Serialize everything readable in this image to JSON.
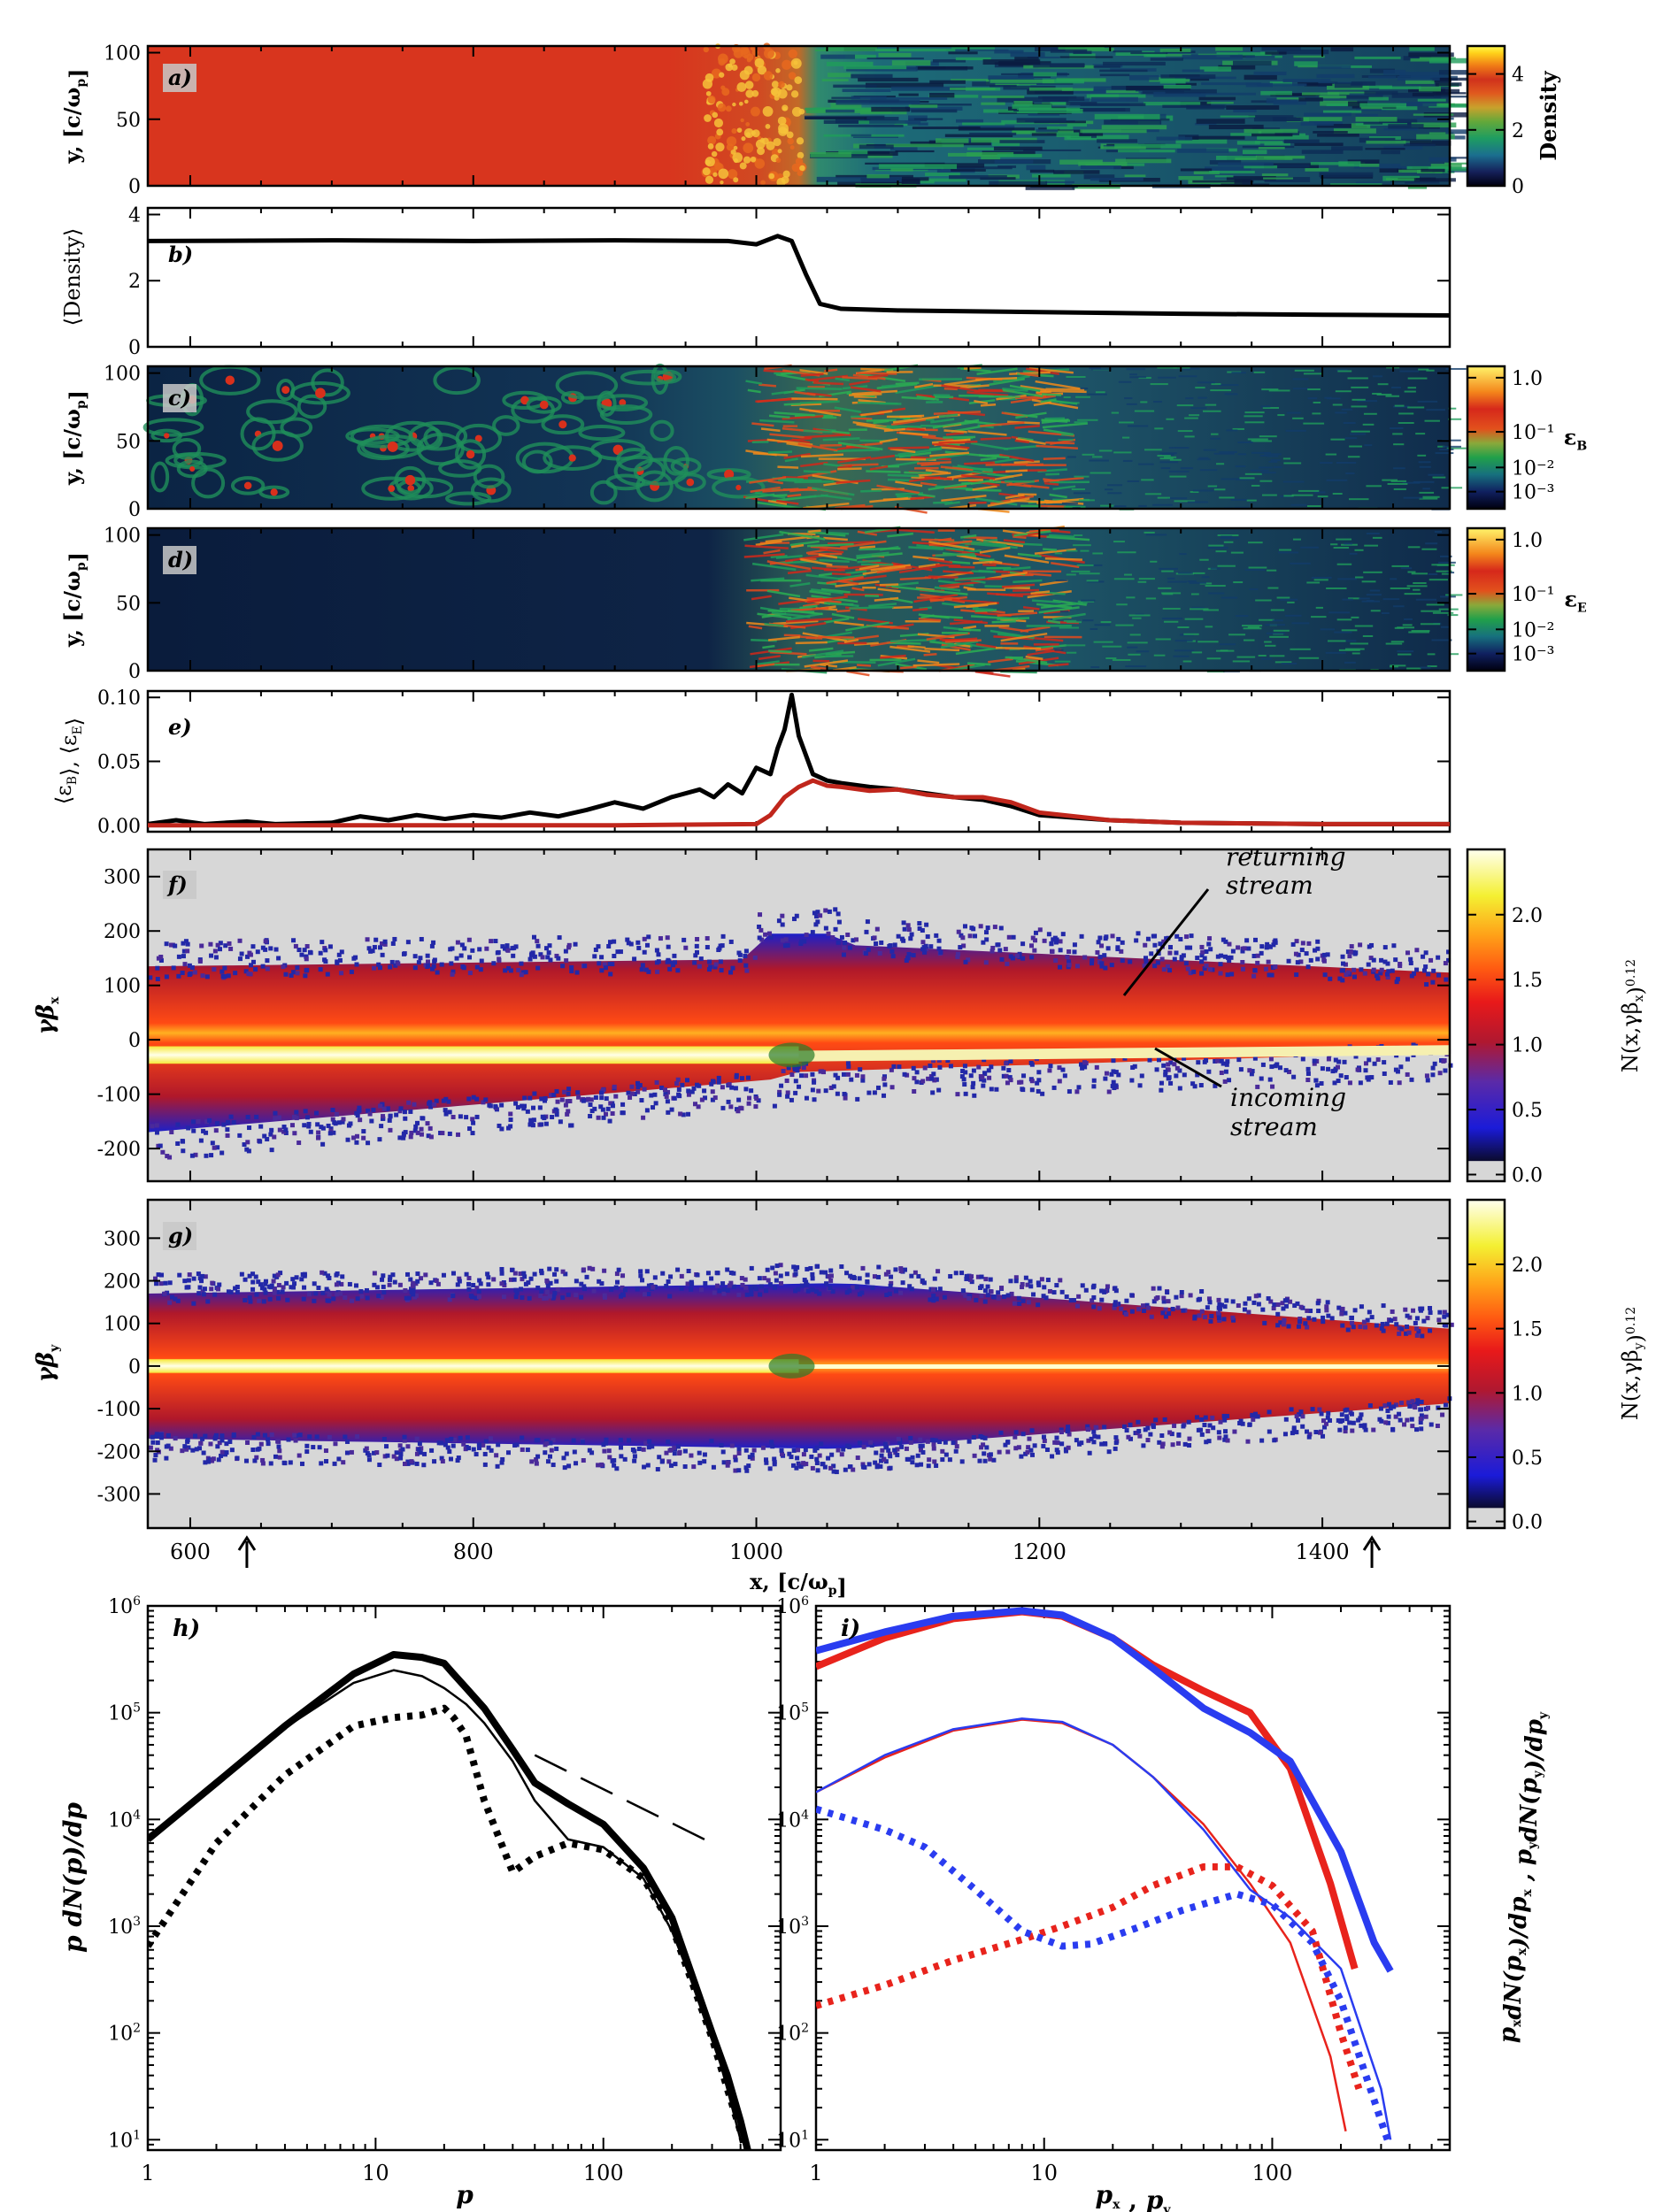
{
  "figure": {
    "colors": {
      "background": "#ffffff",
      "axis": "#000000",
      "red": "#e8231c",
      "blue": "#2a3cf0",
      "upstream_gray": "#d7d7d7",
      "density_red": "#d8351e"
    }
  },
  "chart_data": [
    {
      "id": "a",
      "type": "heatmap",
      "panel_label": "a)",
      "xlim": [
        570,
        1490
      ],
      "ylim": [
        0,
        105
      ],
      "ylabel": "y, [c/ω_p]",
      "yticks": [
        0,
        50,
        100
      ],
      "colorbar": {
        "label": "Density",
        "ticks": [
          0,
          2,
          4
        ],
        "range": [
          0,
          5
        ],
        "colors": [
          "#000010",
          "#15205a",
          "#1b6f8f",
          "#1e9d61",
          "#32b24a",
          "#c9a12c",
          "#e05a1e",
          "#d0321c",
          "#f07c16",
          "#ffd21a",
          "#fffb50"
        ]
      },
      "shock_x": 1020
    },
    {
      "id": "b",
      "type": "line",
      "panel_label": "b)",
      "xlim": [
        570,
        1490
      ],
      "ylim": [
        0,
        4.2
      ],
      "ylabel": "⟨Density⟩",
      "yticks": [
        0,
        2,
        4
      ],
      "series": [
        {
          "name": "mean density",
          "color": "#000000",
          "x": [
            570,
            700,
            800,
            900,
            980,
            1000,
            1015,
            1025,
            1035,
            1045,
            1060,
            1100,
            1200,
            1300,
            1400,
            1490
          ],
          "y": [
            3.2,
            3.22,
            3.2,
            3.22,
            3.2,
            3.1,
            3.35,
            3.2,
            2.2,
            1.3,
            1.15,
            1.1,
            1.05,
            1.0,
            0.97,
            0.95
          ]
        }
      ]
    },
    {
      "id": "c",
      "type": "heatmap",
      "panel_label": "c)",
      "xlim": [
        570,
        1490
      ],
      "ylim": [
        0,
        105
      ],
      "ylabel": "y, [c/ω_p]",
      "yticks": [
        0,
        50,
        100
      ],
      "colorbar": {
        "label": "ε_B",
        "ticklabels": [
          "10⁻³",
          "10⁻²",
          "10⁻¹",
          "1.0"
        ],
        "tickpos": [
          0.12,
          0.29,
          0.54,
          0.92
        ]
      }
    },
    {
      "id": "d",
      "type": "heatmap",
      "panel_label": "d)",
      "xlim": [
        570,
        1490
      ],
      "ylim": [
        0,
        105
      ],
      "ylabel": "y, [c/ω_p]",
      "yticks": [
        0,
        50,
        100
      ],
      "colorbar": {
        "label": "ε_E",
        "ticklabels": [
          "10⁻³",
          "10⁻²",
          "10⁻¹",
          "1.0"
        ],
        "tickpos": [
          0.12,
          0.29,
          0.54,
          0.92
        ]
      }
    },
    {
      "id": "e",
      "type": "line",
      "panel_label": "e)",
      "xlim": [
        570,
        1490
      ],
      "ylim": [
        -0.005,
        0.105
      ],
      "ylabel": "⟨ε_B⟩, ⟨ε_E⟩",
      "yticks": [
        0.0,
        0.05,
        0.1
      ],
      "yticklabels": [
        "0.00",
        "0.05",
        "0.10"
      ],
      "series": [
        {
          "name": "ε_B",
          "color": "#000000",
          "x": [
            570,
            590,
            610,
            640,
            660,
            700,
            720,
            740,
            760,
            780,
            800,
            820,
            840,
            860,
            880,
            900,
            920,
            940,
            960,
            970,
            980,
            990,
            1000,
            1010,
            1015,
            1020,
            1025,
            1030,
            1040,
            1050,
            1060,
            1080,
            1100,
            1120,
            1140,
            1160,
            1180,
            1200,
            1250,
            1300,
            1400,
            1490
          ],
          "y": [
            0.001,
            0.004,
            0.001,
            0.003,
            0.001,
            0.002,
            0.007,
            0.004,
            0.008,
            0.005,
            0.008,
            0.006,
            0.01,
            0.007,
            0.012,
            0.018,
            0.013,
            0.022,
            0.028,
            0.022,
            0.032,
            0.025,
            0.045,
            0.04,
            0.06,
            0.075,
            0.102,
            0.07,
            0.04,
            0.035,
            0.033,
            0.03,
            0.028,
            0.025,
            0.022,
            0.02,
            0.015,
            0.008,
            0.004,
            0.002,
            0.001,
            0.001
          ]
        },
        {
          "name": "ε_E",
          "color": "#c0261c",
          "x": [
            570,
            900,
            1000,
            1010,
            1020,
            1030,
            1040,
            1050,
            1060,
            1080,
            1100,
            1120,
            1140,
            1160,
            1180,
            1200,
            1250,
            1300,
            1400,
            1490
          ],
          "y": [
            0.0,
            0.0,
            0.001,
            0.008,
            0.022,
            0.03,
            0.035,
            0.031,
            0.03,
            0.027,
            0.028,
            0.024,
            0.022,
            0.022,
            0.018,
            0.01,
            0.004,
            0.002,
            0.001,
            0.001
          ]
        }
      ]
    },
    {
      "id": "f",
      "type": "heatmap",
      "panel_label": "f)",
      "xlim": [
        570,
        1490
      ],
      "ylim": [
        -260,
        350
      ],
      "ylabel": "γβ_x",
      "yticks": [
        -200,
        -100,
        0,
        100,
        200,
        300
      ],
      "colorbar": {
        "label": "N(x,γβ_x)^0.12",
        "ticks": [
          0.0,
          0.5,
          1.0,
          1.5,
          2.0
        ],
        "range": [
          0,
          2.4
        ]
      },
      "annotations": [
        "returning",
        "stream",
        "incoming",
        "stream"
      ]
    },
    {
      "id": "g",
      "type": "heatmap",
      "panel_label": "g)",
      "xlim": [
        570,
        1490
      ],
      "ylim": [
        -380,
        390
      ],
      "ylabel": "γβ_y",
      "yticks": [
        -300,
        -200,
        -100,
        0,
        100,
        200,
        300
      ],
      "xlabel": "x, [c/ω_p]",
      "xticks": [
        600,
        800,
        1000,
        1200,
        1400
      ],
      "colorbar": {
        "label": "N(x,γβ_y)^0.12",
        "ticks": [
          0.0,
          0.5,
          1.0,
          1.5,
          2.0
        ],
        "range": [
          0,
          2.4
        ]
      },
      "arrows_x": [
        640,
        1435
      ]
    },
    {
      "id": "h",
      "type": "line",
      "panel_label": "h)",
      "xscale": "log",
      "yscale": "log",
      "xlim": [
        1,
        600
      ],
      "ylim": [
        8,
        1000000
      ],
      "xlabel": "p",
      "ylabel": "p dN(p)/dp",
      "xticks": [
        1,
        10,
        100
      ],
      "yticks": [
        10,
        100,
        1000,
        10000,
        100000,
        1000000
      ],
      "series": [
        {
          "name": "thick",
          "color": "#000000",
          "width": 8,
          "x": [
            1,
            2,
            4,
            8,
            12,
            16,
            20,
            22,
            25,
            30,
            40,
            50,
            70,
            100,
            150,
            200,
            300,
            350,
            400,
            430
          ],
          "y": [
            6500,
            22000,
            75000,
            230000,
            350000,
            330000,
            290000,
            230000,
            170000,
            110000,
            45000,
            22000,
            14000,
            9000,
            3500,
            1200,
            100,
            40,
            15,
            8
          ]
        },
        {
          "name": "thin",
          "color": "#000000",
          "width": 2.5,
          "x": [
            1,
            2,
            4,
            8,
            12,
            16,
            20,
            25,
            30,
            40,
            50,
            70,
            100,
            150,
            200,
            300,
            350,
            400
          ],
          "y": [
            7000,
            22000,
            72000,
            190000,
            250000,
            220000,
            170000,
            120000,
            80000,
            35000,
            15000,
            6500,
            5500,
            2800,
            900,
            100,
            30,
            10
          ]
        },
        {
          "name": "dotted",
          "color": "#000000",
          "width": 8,
          "dash": "6 8",
          "x": [
            1,
            2,
            4,
            8,
            12,
            16,
            20,
            22,
            25,
            30,
            40,
            50,
            70,
            100,
            150,
            200,
            300,
            350,
            400,
            420
          ],
          "y": [
            650,
            6000,
            26000,
            75000,
            90000,
            95000,
            110000,
            90000,
            60000,
            15000,
            3200,
            4500,
            6000,
            5200,
            2800,
            1000,
            90,
            30,
            12,
            8
          ]
        },
        {
          "name": "dashed",
          "color": "#000000",
          "width": 2.5,
          "dash": "40 18",
          "x": [
            50,
            300
          ],
          "y": [
            40000,
            6000
          ]
        }
      ]
    },
    {
      "id": "i",
      "type": "line",
      "panel_label": "i)",
      "xscale": "log",
      "yscale": "log",
      "xlim": [
        1,
        600
      ],
      "ylim": [
        8,
        1000000
      ],
      "xlabel": "p_x ,  p_y",
      "ylabel": "p_x dN(p_x)/dp_x ,  p_y dN(p_y)/dp_y",
      "xticks": [
        1,
        10,
        100
      ],
      "yticks": [
        10,
        100,
        1000,
        10000,
        100000,
        1000000
      ],
      "series": [
        {
          "name": "px thick",
          "color": "#e8231c",
          "width": 8,
          "x": [
            1,
            2,
            4,
            8,
            12,
            20,
            30,
            50,
            80,
            120,
            180,
            230
          ],
          "y": [
            270000,
            500000,
            760000,
            880000,
            800000,
            500000,
            280000,
            160000,
            100000,
            30000,
            2500,
            400
          ]
        },
        {
          "name": "py thick",
          "color": "#2a3cf0",
          "width": 8,
          "x": [
            1,
            2,
            4,
            8,
            12,
            20,
            30,
            50,
            80,
            120,
            200,
            280,
            330
          ],
          "y": [
            380000,
            570000,
            800000,
            900000,
            820000,
            500000,
            260000,
            110000,
            65000,
            35000,
            5000,
            700,
            380
          ]
        },
        {
          "name": "px thin",
          "color": "#e8231c",
          "width": 2.5,
          "x": [
            1,
            2,
            4,
            8,
            12,
            20,
            30,
            50,
            80,
            120,
            180,
            210
          ],
          "y": [
            18000,
            38000,
            68000,
            86000,
            80000,
            50000,
            25000,
            9000,
            2500,
            700,
            60,
            12
          ]
        },
        {
          "name": "py thin",
          "color": "#2a3cf0",
          "width": 2.5,
          "x": [
            1,
            2,
            4,
            8,
            12,
            20,
            30,
            50,
            80,
            120,
            200,
            300,
            330
          ],
          "y": [
            18000,
            40000,
            70000,
            88000,
            82000,
            50000,
            25000,
            8000,
            2200,
            1200,
            400,
            30,
            10
          ]
        },
        {
          "name": "px dotted",
          "color": "#e8231c",
          "width": 8,
          "dash": "6 8",
          "x": [
            1,
            2,
            4,
            8,
            12,
            20,
            30,
            50,
            70,
            100,
            150,
            200,
            240
          ],
          "y": [
            180,
            280,
            480,
            750,
            1000,
            1500,
            2400,
            3600,
            3600,
            2400,
            900,
            100,
            30
          ]
        },
        {
          "name": "py dotted",
          "color": "#2a3cf0",
          "width": 8,
          "dash": "6 8",
          "x": [
            1,
            2,
            3,
            5,
            8,
            12,
            16,
            25,
            40,
            70,
            100,
            150,
            200,
            300,
            320
          ],
          "y": [
            12500,
            8000,
            5500,
            2200,
            900,
            650,
            680,
            950,
            1400,
            2000,
            1600,
            700,
            200,
            15,
            10
          ]
        }
      ]
    }
  ]
}
